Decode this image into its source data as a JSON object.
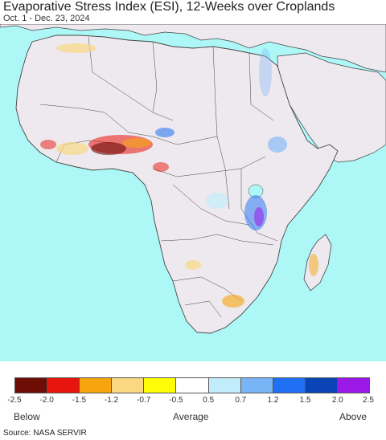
{
  "title": "Evaporative Stress Index (ESI), 12-Weeks over Croplands",
  "subtitle": "Oct. 1 - Dec. 23, 2024",
  "colors": {
    "ocean": "#aef7f7",
    "land": "#ede9ee",
    "border": "#444444"
  },
  "legend": {
    "swatches": [
      "#6e0c06",
      "#e8150e",
      "#f7a50d",
      "#f9d783",
      "#fefc06",
      "#ffffff",
      "#c3ecfb",
      "#79b4f6",
      "#1f70f3",
      "#0a43b3",
      "#9a19e6"
    ],
    "ticks": [
      "-2.5",
      "-2.0",
      "-1.5",
      "-1.2",
      "-0.7",
      "-0.5",
      "0.5",
      "0.7",
      "1.2",
      "1.5",
      "2.0",
      "2.5"
    ],
    "below": "Below",
    "average": "Average",
    "above": "Above"
  },
  "source": "Source: NASA SERVIR"
}
